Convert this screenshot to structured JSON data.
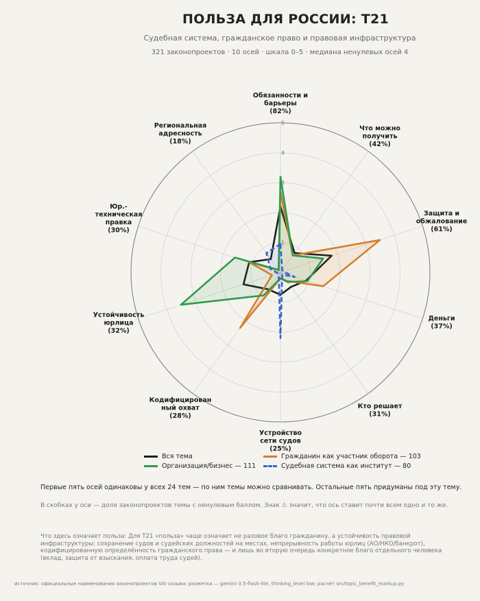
{
  "header": {
    "title": "ПОЛЬЗА ДЛЯ РОССИИ: T21",
    "subtitle": "Судебная система, гражданское право и правовая инфраструктура",
    "meta": "321 законопроектов · 10 осей · шкала 0–5 · медиана ненулевых осей 4"
  },
  "chart_data": {
    "type": "radar",
    "axes": [
      {
        "label": "Обязанности и барьеры",
        "share": "(82%)"
      },
      {
        "label": "Что можно получить",
        "share": "(42%)"
      },
      {
        "label": "Защита и обжалование",
        "share": "(61%)"
      },
      {
        "label": "Деньги",
        "share": "(37%)"
      },
      {
        "label": "Кто решает",
        "share": "(31%)"
      },
      {
        "label": "Устройство сети судов",
        "share": "(25%)"
      },
      {
        "label": "Кодифицированный охват",
        "share": "(28%)"
      },
      {
        "label": "Устойчивость юрлица",
        "share": "(32%)"
      },
      {
        "label": "Юр.-техническая правка",
        "share": "(30%)"
      },
      {
        "label": "Региональная адресность",
        "share": "(18%)"
      }
    ],
    "rlim": [
      0,
      5
    ],
    "rticks": [
      "1",
      "2",
      "3",
      "4",
      "5"
    ],
    "series": [
      {
        "name": "Вся тема",
        "color": "#1c1c1c",
        "dash": "solid",
        "fill": false,
        "values": [
          2.2,
          0.8,
          1.8,
          0.9,
          0.6,
          0.75,
          0.7,
          1.3,
          1.1,
          0.55
        ]
      },
      {
        "name": "Гражданин как участник оборота",
        "count": "103",
        "color": "#d97f2a",
        "dash": "solid",
        "fill": true,
        "values": [
          2.7,
          0.7,
          3.5,
          1.5,
          0.35,
          0.2,
          2.3,
          0.3,
          1.1,
          0.1
        ]
      },
      {
        "name": "Организация/бизнес",
        "count": "111",
        "color": "#2e9a4e",
        "dash": "solid",
        "fill": true,
        "values": [
          3.2,
          0.7,
          1.5,
          0.95,
          0.4,
          0.2,
          0.95,
          3.5,
          1.6,
          0.1
        ]
      },
      {
        "name": "Судебная система как институт",
        "count": "80",
        "color": "#3366cc",
        "dash": "dashed",
        "fill": true,
        "values": [
          0.95,
          0.1,
          0.1,
          0.5,
          0.1,
          2.2,
          0.1,
          0.1,
          0.35,
          0.8
        ]
      }
    ]
  },
  "legend": {
    "items": [
      {
        "text": "Вся тема"
      },
      {
        "text": "Гражданин как участник оборота — 103"
      },
      {
        "text": "Организация/бизнес — 111"
      },
      {
        "text": "Судебная система как институт — 80"
      }
    ]
  },
  "notes": {
    "n1": "Первые пять осей одинаковы у всех 24 тем — по ним темы можно сравнивать. Остальные пять придуманы под эту тему.",
    "n2": "В скобках у оси — доля законопроектов темы с ненулевым баллом. Знак ⚠ значит, что ось ставит почти всем одно и то же.",
    "n3": "Что здесь означает польза: Для T21 «польза» чаще означает не разовое благо гражданину, а устойчивость правовой инфраструктуры: сохранение судов и судейских должностей на местах, непрерывность работы юрлиц (АО/НКО/банкрот), кодифицированную определённость гражданского права — и лишь во вторую очередь конкретное благо отдельного человека (вклад, защита от взыскания, оплата труда судей)."
  },
  "source": "источник: официальные наименования законопроектов VIII созыва; разметка — gemini-3.5-flash-lite, thinking_level low; расчёт src/topic_benefit_markup.py"
}
